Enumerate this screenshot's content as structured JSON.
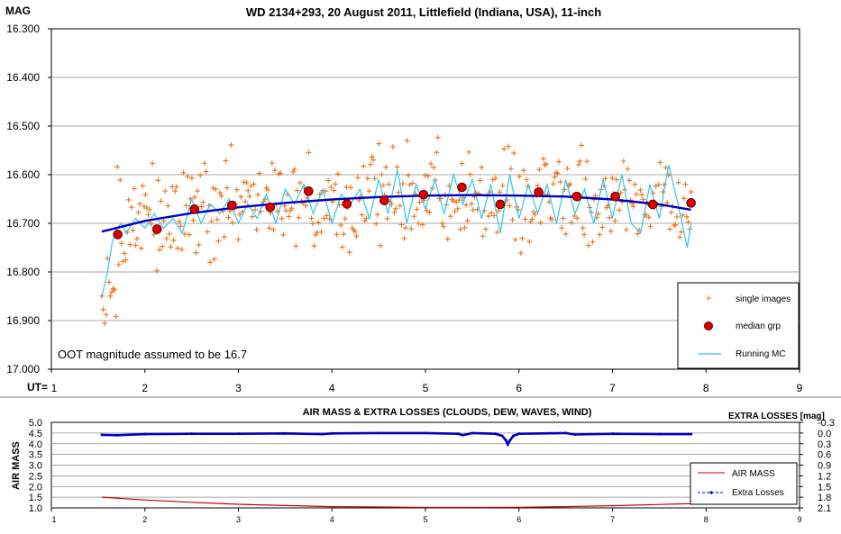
{
  "chart_data": [
    {
      "type": "scatter",
      "title": "WD 2134+293,  20 August 2011, Littlefield (Indiana, USA), 11-inch",
      "ylabel": "MAG",
      "xlabel": "UT=",
      "xlim": [
        1,
        9
      ],
      "ylim": [
        16.3,
        17.0
      ],
      "y_inverted": true,
      "grid": true,
      "legend_position": "bottom-right",
      "x_ticks": [
        "1",
        "2",
        "3",
        "4",
        "5",
        "6",
        "7",
        "8",
        "9"
      ],
      "y_ticks": [
        "16.300",
        "16.400",
        "16.500",
        "16.600",
        "16.700",
        "16.800",
        "16.900",
        "17.000"
      ],
      "annotation": "OOT magnitude assumed to be 16.7",
      "legend": [
        "single images",
        "median grp",
        "Running MC"
      ],
      "colors": {
        "single": "#e87722",
        "median_fill": "#e00000",
        "running": "#33c6e8",
        "fit": "#0000c0"
      },
      "series": [
        {
          "name": "median grp",
          "x": [
            1.71,
            2.13,
            2.53,
            2.93,
            3.34,
            3.75,
            4.16,
            4.56,
            4.98,
            5.39,
            5.8,
            6.21,
            6.62,
            7.03,
            7.43,
            7.84
          ],
          "y": [
            16.723,
            16.712,
            16.671,
            16.663,
            16.667,
            16.634,
            16.66,
            16.653,
            16.641,
            16.626,
            16.661,
            16.636,
            16.645,
            16.645,
            16.661,
            16.658
          ]
        },
        {
          "name": "Running MC",
          "x": [
            1.54,
            1.6,
            1.65,
            1.7,
            1.75,
            1.8,
            1.9,
            2.0,
            2.1,
            2.2,
            2.3,
            2.4,
            2.5,
            2.6,
            2.7,
            2.8,
            2.9,
            3.0,
            3.1,
            3.2,
            3.3,
            3.4,
            3.5,
            3.6,
            3.7,
            3.8,
            3.9,
            4.0,
            4.1,
            4.2,
            4.3,
            4.4,
            4.5,
            4.6,
            4.7,
            4.8,
            4.9,
            5.0,
            5.1,
            5.2,
            5.3,
            5.4,
            5.5,
            5.6,
            5.7,
            5.8,
            5.9,
            6.0,
            6.1,
            6.2,
            6.3,
            6.4,
            6.5,
            6.6,
            6.7,
            6.8,
            6.9,
            7.0,
            7.1,
            7.2,
            7.3,
            7.4,
            7.5,
            7.6,
            7.7,
            7.8,
            7.84
          ],
          "y": [
            16.85,
            16.8,
            16.74,
            16.71,
            16.7,
            16.72,
            16.69,
            16.71,
            16.68,
            16.71,
            16.69,
            16.72,
            16.65,
            16.7,
            16.66,
            16.68,
            16.65,
            16.7,
            16.66,
            16.69,
            16.64,
            16.7,
            16.63,
            16.66,
            16.62,
            16.68,
            16.63,
            16.7,
            16.64,
            16.66,
            16.63,
            16.69,
            16.61,
            16.68,
            16.59,
            16.7,
            16.62,
            16.67,
            16.61,
            16.68,
            16.6,
            16.66,
            16.61,
            16.69,
            16.62,
            16.72,
            16.6,
            16.69,
            16.62,
            16.68,
            16.62,
            16.7,
            16.61,
            16.68,
            16.63,
            16.7,
            16.61,
            16.69,
            16.6,
            16.7,
            16.72,
            16.62,
            16.69,
            16.58,
            16.66,
            16.75,
            16.7
          ]
        },
        {
          "name": "fit",
          "x": [
            1.54,
            2.0,
            2.5,
            3.0,
            3.5,
            4.0,
            4.5,
            5.0,
            5.5,
            6.0,
            6.5,
            7.0,
            7.5,
            7.84
          ],
          "y": [
            16.717,
            16.695,
            16.679,
            16.667,
            16.658,
            16.651,
            16.646,
            16.643,
            16.642,
            16.643,
            16.645,
            16.651,
            16.661,
            16.672
          ]
        }
      ]
    },
    {
      "type": "line",
      "title": "AIR MASS & EXTRA LOSSES (CLOUDS, DEW, WAVES, WIND)",
      "ylabel": "AIR MASS",
      "y2label": "EXTRA LOSSES [mag]",
      "xlim": [
        1,
        9
      ],
      "ylim": [
        1.0,
        5.0
      ],
      "y2lim": [
        -0.3,
        2.1
      ],
      "y2_inverted": true,
      "legend_position": "bottom-right",
      "x_ticks": [
        "1",
        "2",
        "3",
        "4",
        "5",
        "6",
        "7",
        "8",
        "9"
      ],
      "y_ticks": [
        "1.0",
        "1.5",
        "2.0",
        "2.5",
        "3.0",
        "3.5",
        "4.0",
        "4.5",
        "5.0"
      ],
      "y2_ticks": [
        "-0.3",
        "0.0",
        "0.3",
        "0.6",
        "0.9",
        "1.2",
        "1.5",
        "1.8",
        "2.1"
      ],
      "legend": [
        "AIR MASS",
        "Extra Losses"
      ],
      "colors": {
        "airmass": "#c00000",
        "extra": "#0000c0"
      },
      "series": [
        {
          "name": "AIR MASS",
          "x": [
            1.54,
            2.0,
            2.5,
            3.0,
            3.5,
            4.0,
            4.5,
            5.0,
            5.5,
            6.0,
            6.5,
            7.0,
            7.5,
            7.84
          ],
          "y": [
            1.5,
            1.37,
            1.26,
            1.17,
            1.11,
            1.06,
            1.04,
            1.02,
            1.02,
            1.03,
            1.06,
            1.1,
            1.16,
            1.2
          ]
        },
        {
          "name": "Extra Losses",
          "x": [
            1.54,
            1.7,
            2.0,
            2.5,
            3.0,
            3.5,
            3.9,
            4.0,
            4.5,
            5.0,
            5.35,
            5.4,
            5.5,
            5.75,
            5.82,
            5.86,
            5.88,
            5.9,
            5.94,
            6.0,
            6.5,
            6.6,
            7.0,
            7.5,
            7.84
          ],
          "y": [
            0.05,
            0.06,
            0.03,
            0.02,
            0.02,
            0.01,
            0.03,
            0.01,
            0.0,
            0.0,
            0.02,
            0.06,
            0.0,
            0.02,
            0.08,
            0.2,
            0.32,
            0.22,
            0.08,
            0.02,
            0.0,
            0.04,
            0.02,
            0.03,
            0.03
          ]
        }
      ]
    }
  ]
}
